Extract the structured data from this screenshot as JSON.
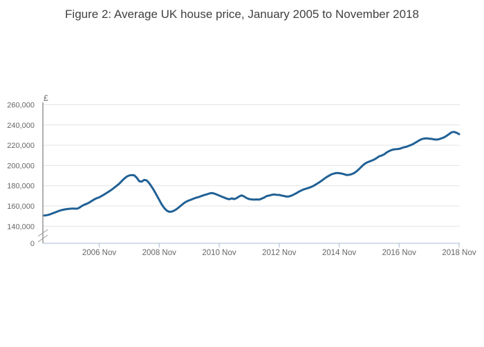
{
  "page": {
    "title": "Figure 2: Average UK house price, January 2005 to November 2018"
  },
  "chart_data": {
    "type": "line",
    "title": "Figure 2: Average UK house price, January 2005 to November 2018",
    "unit_label": "£",
    "xlabel": "",
    "ylabel": "£",
    "grid": "horizontal",
    "legend": "none",
    "axis_break": true,
    "ylim": [
      0,
      262000
    ],
    "ylim_display": [
      140000,
      262000
    ],
    "colors": {
      "line": "#206095",
      "grid": "#e3e3e3",
      "y_axis": "#606060",
      "x_axis": "#b9c8da",
      "tick_text": "#666666",
      "title_text": "#404040",
      "break_mark": "#999999"
    },
    "y_ticks": [
      {
        "label": "260,000",
        "value": 260000
      },
      {
        "label": "240,000",
        "value": 240000
      },
      {
        "label": "220,000",
        "value": 220000
      },
      {
        "label": "200,000",
        "value": 200000
      },
      {
        "label": "180,000",
        "value": 180000
      },
      {
        "label": "160,000",
        "value": 160000
      },
      {
        "label": "140,000",
        "value": 140000
      },
      {
        "label": "0",
        "value": 0
      }
    ],
    "x_ticks": [
      {
        "label": "2006 Nov",
        "month_index": 22
      },
      {
        "label": "2008 Nov",
        "month_index": 46
      },
      {
        "label": "2010 Nov",
        "month_index": 70
      },
      {
        "label": "2012 Nov",
        "month_index": 94
      },
      {
        "label": "2014 Nov",
        "month_index": 118
      },
      {
        "label": "2016 Nov",
        "month_index": 142
      },
      {
        "label": "2018 Nov",
        "month_index": 166
      }
    ],
    "series": [
      {
        "name": "Average UK house price",
        "frequency": "monthly",
        "start": "2005 Jan",
        "end": "2018 Nov",
        "values_unit": "GBP (estimated from chart)",
        "values": [
          150600,
          150900,
          151500,
          152400,
          153400,
          154300,
          155300,
          156000,
          156500,
          156900,
          157200,
          157400,
          157500,
          157300,
          158200,
          159900,
          161200,
          162200,
          163400,
          165000,
          166500,
          167700,
          168500,
          170000,
          171300,
          173000,
          174500,
          176200,
          178000,
          180000,
          182000,
          184500,
          187000,
          189000,
          190200,
          190500,
          190300,
          188000,
          184500,
          184000,
          185800,
          185200,
          182500,
          179000,
          175000,
          170500,
          166000,
          161500,
          158000,
          155500,
          154300,
          154500,
          155500,
          157000,
          159000,
          161000,
          163000,
          164500,
          165500,
          166500,
          167500,
          168300,
          169000,
          170000,
          170800,
          171500,
          172300,
          172800,
          172300,
          171300,
          170300,
          169300,
          168300,
          167300,
          166600,
          167500,
          166800,
          167800,
          169500,
          170500,
          169300,
          167800,
          166800,
          166500,
          166300,
          166500,
          166300,
          167300,
          168300,
          169800,
          170300,
          171000,
          171400,
          171000,
          170900,
          170300,
          169800,
          169300,
          169500,
          170300,
          171500,
          172800,
          174300,
          175500,
          176500,
          177300,
          178000,
          179000,
          180300,
          181800,
          183300,
          185000,
          186800,
          188500,
          190000,
          191300,
          192100,
          192600,
          192400,
          192000,
          191300,
          190600,
          190800,
          191500,
          192500,
          194300,
          196500,
          199000,
          201300,
          202800,
          203800,
          204800,
          205800,
          207300,
          209000,
          209800,
          211000,
          212800,
          214300,
          215300,
          215900,
          216100,
          216400,
          217200,
          218000,
          218500,
          219500,
          220500,
          221800,
          223300,
          224800,
          226000,
          226600,
          226800,
          226500,
          226300,
          225800,
          225500,
          226000,
          226800,
          227800,
          229300,
          231000,
          232800,
          233200,
          232300,
          230900
        ]
      }
    ]
  }
}
